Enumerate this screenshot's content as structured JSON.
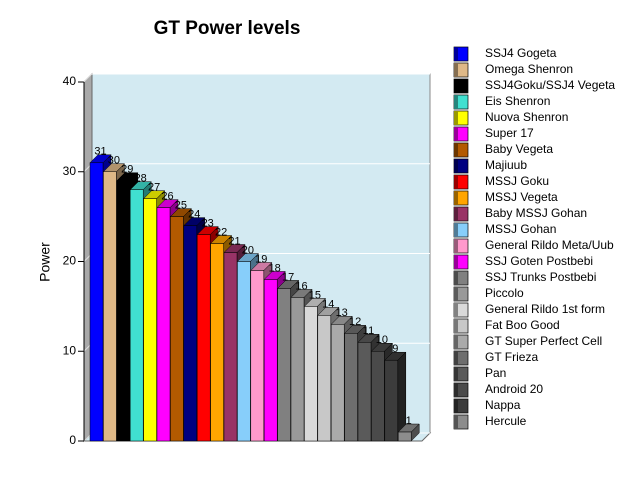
{
  "chart_data": {
    "type": "bar",
    "title": "GT Power levels",
    "y_label": "Power",
    "ylim": [
      0,
      40
    ],
    "yticks": [
      0,
      10,
      20,
      30,
      40
    ],
    "grid": true,
    "series": [
      {
        "name": "SSJ4 Gogeta",
        "color": "#0000ff",
        "values": [
          31
        ]
      },
      {
        "name": "Omega Shenron",
        "color": "#deb887",
        "values": [
          30
        ]
      },
      {
        "name": "SSJ4Goku/SSJ4 Vegeta",
        "color": "#000000",
        "values": [
          29
        ]
      },
      {
        "name": "Eis Shenron",
        "color": "#40e0d0",
        "values": [
          28
        ]
      },
      {
        "name": "Nuova Shenron",
        "color": "#ffff00",
        "values": [
          27
        ]
      },
      {
        "name": "Super 17",
        "color": "#ff00ff",
        "values": [
          26
        ]
      },
      {
        "name": "Baby Vegeta",
        "color": "#b35a00",
        "values": [
          25
        ]
      },
      {
        "name": "Majiuub",
        "color": "#000080",
        "values": [
          24
        ]
      },
      {
        "name": "MSSJ Goku",
        "color": "#ff0000",
        "values": [
          23
        ]
      },
      {
        "name": "MSSJ Vegeta",
        "color": "#ffa500",
        "values": [
          22
        ]
      },
      {
        "name": "Baby MSSJ Gohan",
        "color": "#993366",
        "values": [
          21
        ]
      },
      {
        "name": "MSSJ Gohan",
        "color": "#87cefa",
        "values": [
          20
        ]
      },
      {
        "name": "General Rildo Meta/Uub",
        "color": "#ff99cc",
        "values": [
          19
        ]
      },
      {
        "name": "SSJ Goten Postbebi",
        "color": "#ff00ff",
        "values": [
          18
        ]
      },
      {
        "name": "SSJ Trunks Postbebi",
        "color": "#808080",
        "values": [
          17
        ]
      },
      {
        "name": "Piccolo",
        "color": "#999999",
        "values": [
          16
        ]
      },
      {
        "name": "General Rildo 1st form",
        "color": "#d9d9d9",
        "values": [
          15
        ]
      },
      {
        "name": "Fat Boo Good",
        "color": "#c8c8c8",
        "values": [
          14
        ]
      },
      {
        "name": "GT Super Perfect Cell",
        "color": "#aaaaaa",
        "values": [
          13
        ]
      },
      {
        "name": "GT Frieza",
        "color": "#6e6e6e",
        "values": [
          12
        ]
      },
      {
        "name": "Pan",
        "color": "#5a5a5a",
        "values": [
          11
        ]
      },
      {
        "name": "Android 20",
        "color": "#4a4a4a",
        "values": [
          10
        ]
      },
      {
        "name": "Nappa",
        "color": "#3c3c3c",
        "values": [
          9
        ]
      },
      {
        "name": "Hercule",
        "color": "#8c8c8c",
        "values": [
          1
        ]
      }
    ]
  }
}
